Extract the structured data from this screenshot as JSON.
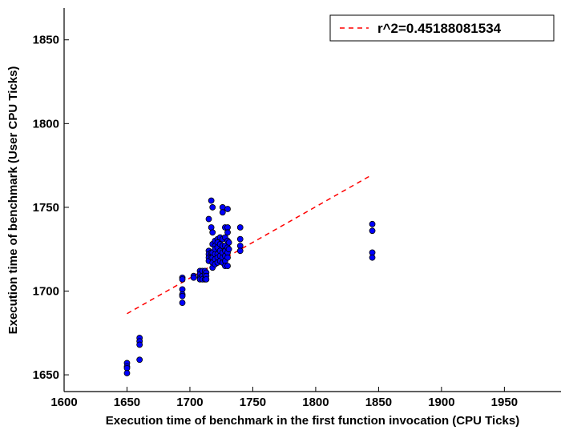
{
  "chart_data": {
    "type": "scatter",
    "xlabel": "Execution time of benchmark in the first function invocation (CPU Ticks)",
    "ylabel": "Execution time of benchmark (User CPU Ticks)",
    "xlim": [
      1600,
      1995
    ],
    "ylim": [
      1640,
      1869
    ],
    "x_ticks": [
      1600,
      1650,
      1700,
      1750,
      1800,
      1850,
      1900,
      1950
    ],
    "y_ticks": [
      1650,
      1700,
      1750,
      1800,
      1850
    ],
    "grid": false,
    "legend": {
      "position": "top-right",
      "entries": [
        "r^2=0.45188081534"
      ]
    },
    "colors": {
      "points": "#0000ff",
      "fit": "#ff0000"
    },
    "fit_line": {
      "name": "r^2=0.45188081534",
      "x": [
        1650,
        1845
      ],
      "y": [
        1686.5,
        1769.5
      ]
    },
    "points": [
      {
        "x": 1650,
        "y": 1657
      },
      {
        "x": 1650,
        "y": 1655
      },
      {
        "x": 1650,
        "y": 1654
      },
      {
        "x": 1650,
        "y": 1651
      },
      {
        "x": 1660,
        "y": 1672
      },
      {
        "x": 1660,
        "y": 1670
      },
      {
        "x": 1660,
        "y": 1668
      },
      {
        "x": 1660,
        "y": 1659
      },
      {
        "x": 1694,
        "y": 1708
      },
      {
        "x": 1694,
        "y": 1707
      },
      {
        "x": 1694,
        "y": 1701
      },
      {
        "x": 1694,
        "y": 1698
      },
      {
        "x": 1694,
        "y": 1697
      },
      {
        "x": 1694,
        "y": 1693
      },
      {
        "x": 1703,
        "y": 1709
      },
      {
        "x": 1703,
        "y": 1708
      },
      {
        "x": 1708,
        "y": 1712
      },
      {
        "x": 1708,
        "y": 1710
      },
      {
        "x": 1708,
        "y": 1708
      },
      {
        "x": 1708,
        "y": 1707
      },
      {
        "x": 1710,
        "y": 1712
      },
      {
        "x": 1710,
        "y": 1709
      },
      {
        "x": 1710,
        "y": 1707
      },
      {
        "x": 1712,
        "y": 1712
      },
      {
        "x": 1712,
        "y": 1710
      },
      {
        "x": 1712,
        "y": 1707
      },
      {
        "x": 1713,
        "y": 1711
      },
      {
        "x": 1713,
        "y": 1709
      },
      {
        "x": 1713,
        "y": 1707
      },
      {
        "x": 1715,
        "y": 1743
      },
      {
        "x": 1715,
        "y": 1724
      },
      {
        "x": 1715,
        "y": 1722
      },
      {
        "x": 1715,
        "y": 1720
      },
      {
        "x": 1715,
        "y": 1718
      },
      {
        "x": 1717,
        "y": 1754
      },
      {
        "x": 1717,
        "y": 1738
      },
      {
        "x": 1717,
        "y": 1723
      },
      {
        "x": 1717,
        "y": 1720
      },
      {
        "x": 1718,
        "y": 1750
      },
      {
        "x": 1718,
        "y": 1735
      },
      {
        "x": 1718,
        "y": 1728
      },
      {
        "x": 1718,
        "y": 1723
      },
      {
        "x": 1718,
        "y": 1720
      },
      {
        "x": 1718,
        "y": 1717
      },
      {
        "x": 1718,
        "y": 1714
      },
      {
        "x": 1720,
        "y": 1730
      },
      {
        "x": 1720,
        "y": 1727
      },
      {
        "x": 1720,
        "y": 1725
      },
      {
        "x": 1720,
        "y": 1722
      },
      {
        "x": 1720,
        "y": 1719
      },
      {
        "x": 1720,
        "y": 1716
      },
      {
        "x": 1722,
        "y": 1731
      },
      {
        "x": 1722,
        "y": 1729
      },
      {
        "x": 1722,
        "y": 1726
      },
      {
        "x": 1722,
        "y": 1722
      },
      {
        "x": 1722,
        "y": 1720
      },
      {
        "x": 1722,
        "y": 1717
      },
      {
        "x": 1724,
        "y": 1732
      },
      {
        "x": 1724,
        "y": 1728
      },
      {
        "x": 1724,
        "y": 1724
      },
      {
        "x": 1724,
        "y": 1721
      },
      {
        "x": 1724,
        "y": 1718
      },
      {
        "x": 1726,
        "y": 1750
      },
      {
        "x": 1726,
        "y": 1747
      },
      {
        "x": 1726,
        "y": 1731
      },
      {
        "x": 1726,
        "y": 1727
      },
      {
        "x": 1726,
        "y": 1723
      },
      {
        "x": 1726,
        "y": 1720
      },
      {
        "x": 1726,
        "y": 1717
      },
      {
        "x": 1728,
        "y": 1738
      },
      {
        "x": 1728,
        "y": 1732
      },
      {
        "x": 1728,
        "y": 1727
      },
      {
        "x": 1728,
        "y": 1724
      },
      {
        "x": 1728,
        "y": 1721
      },
      {
        "x": 1728,
        "y": 1718
      },
      {
        "x": 1728,
        "y": 1715
      },
      {
        "x": 1730,
        "y": 1749
      },
      {
        "x": 1730,
        "y": 1738
      },
      {
        "x": 1730,
        "y": 1735
      },
      {
        "x": 1730,
        "y": 1730
      },
      {
        "x": 1730,
        "y": 1726
      },
      {
        "x": 1730,
        "y": 1723
      },
      {
        "x": 1730,
        "y": 1720
      },
      {
        "x": 1730,
        "y": 1715
      },
      {
        "x": 1731,
        "y": 1729
      },
      {
        "x": 1731,
        "y": 1725
      },
      {
        "x": 1740,
        "y": 1738
      },
      {
        "x": 1740,
        "y": 1731
      },
      {
        "x": 1740,
        "y": 1727
      },
      {
        "x": 1740,
        "y": 1724
      },
      {
        "x": 1845,
        "y": 1740
      },
      {
        "x": 1845,
        "y": 1736
      },
      {
        "x": 1845,
        "y": 1723
      },
      {
        "x": 1845,
        "y": 1720
      }
    ]
  }
}
